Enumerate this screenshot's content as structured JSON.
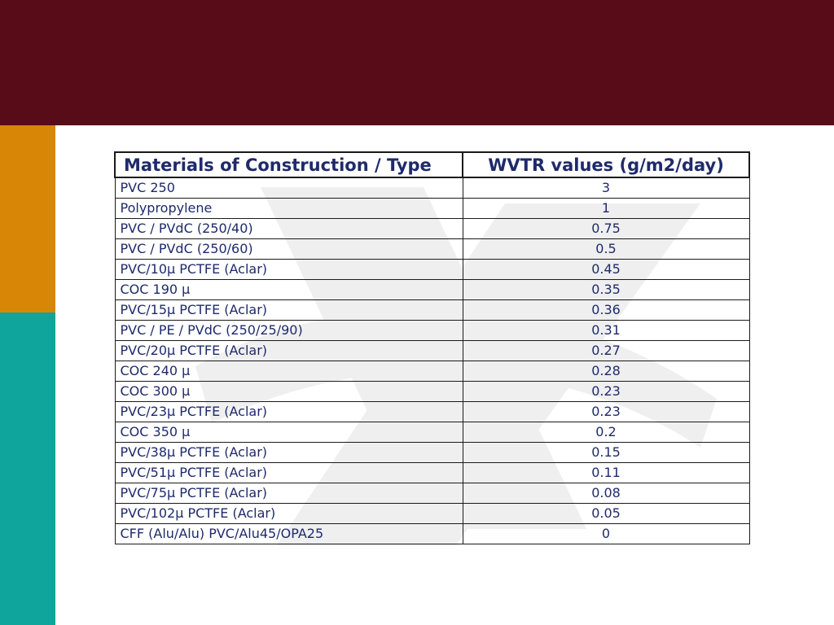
{
  "table": {
    "header": {
      "material": "Materials of Construction / Type",
      "value": "WVTR values (g/m2/day)"
    },
    "rows": [
      {
        "material": "PVC 250",
        "value": "3"
      },
      {
        "material": "Polypropylene",
        "value": "1"
      },
      {
        "material": "PVC / PVdC (250/40)",
        "value": "0.75"
      },
      {
        "material": "PVC / PVdC (250/60)",
        "value": "0.5"
      },
      {
        "material": "PVC/10µ PCTFE (Aclar)",
        "value": "0.45"
      },
      {
        "material": "COC 190 µ",
        "value": "0.35"
      },
      {
        "material": "PVC/15µ PCTFE (Aclar)",
        "value": "0.36"
      },
      {
        "material": "PVC / PE / PVdC (250/25/90)",
        "value": "0.31"
      },
      {
        "material": "PVC/20µ PCTFE (Aclar)",
        "value": "0.27"
      },
      {
        "material": "COC 240 µ",
        "value": "0.28"
      },
      {
        "material": "COC 300 µ",
        "value": "0.23"
      },
      {
        "material": "PVC/23µ PCTFE (Aclar)",
        "value": "0.23"
      },
      {
        "material": "COC 350 µ",
        "value": "0.2"
      },
      {
        "material": "PVC/38µ PCTFE (Aclar)",
        "value": "0.15"
      },
      {
        "material": "PVC/51µ PCTFE (Aclar)",
        "value": "0.11"
      },
      {
        "material": "PVC/75µ PCTFE (Aclar)",
        "value": "0.08"
      },
      {
        "material": "PVC/102µ PCTFE (Aclar)",
        "value": "0.05"
      },
      {
        "material": "CFF (Alu/Alu) PVC/Alu45/OPA25",
        "value": "0"
      }
    ]
  },
  "colors": {
    "header_band": "#570c18",
    "side_orange": "#d88605",
    "side_teal": "#0fa49c",
    "table_text": "#1f2a6b"
  }
}
